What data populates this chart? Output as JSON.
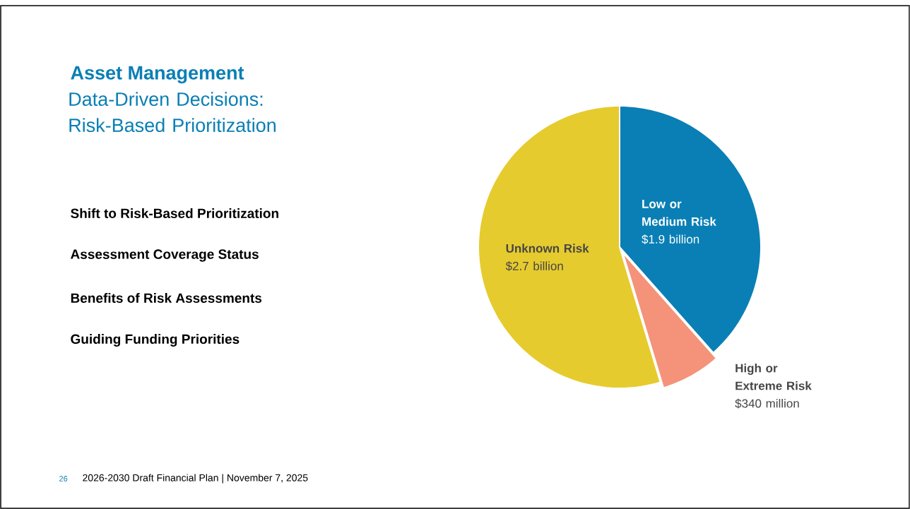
{
  "chart_data": {
    "type": "pie",
    "title": "Asset Management",
    "subtitle": "Data-Driven Decisions: Risk-Based Prioritization",
    "categories": [
      "Low or Medium Risk",
      "High or Extreme Risk",
      "Unknown Risk"
    ],
    "values": [
      1900000000,
      340000000,
      2700000000
    ],
    "value_labels": [
      "$1.9 billion",
      "$340 million",
      "$2.7 billion"
    ],
    "colors": [
      "#0a7fb5",
      "#f4937a",
      "#e6cb2e"
    ],
    "annotations": [
      "Shift to Risk-Based Prioritization",
      "Assessment Coverage Status",
      "Benefits of Risk Assessments",
      "Guiding Funding Priorities",
      "26",
      "2026-2030 Draft Financial Plan  |  November 7, 2025"
    ]
  }
}
